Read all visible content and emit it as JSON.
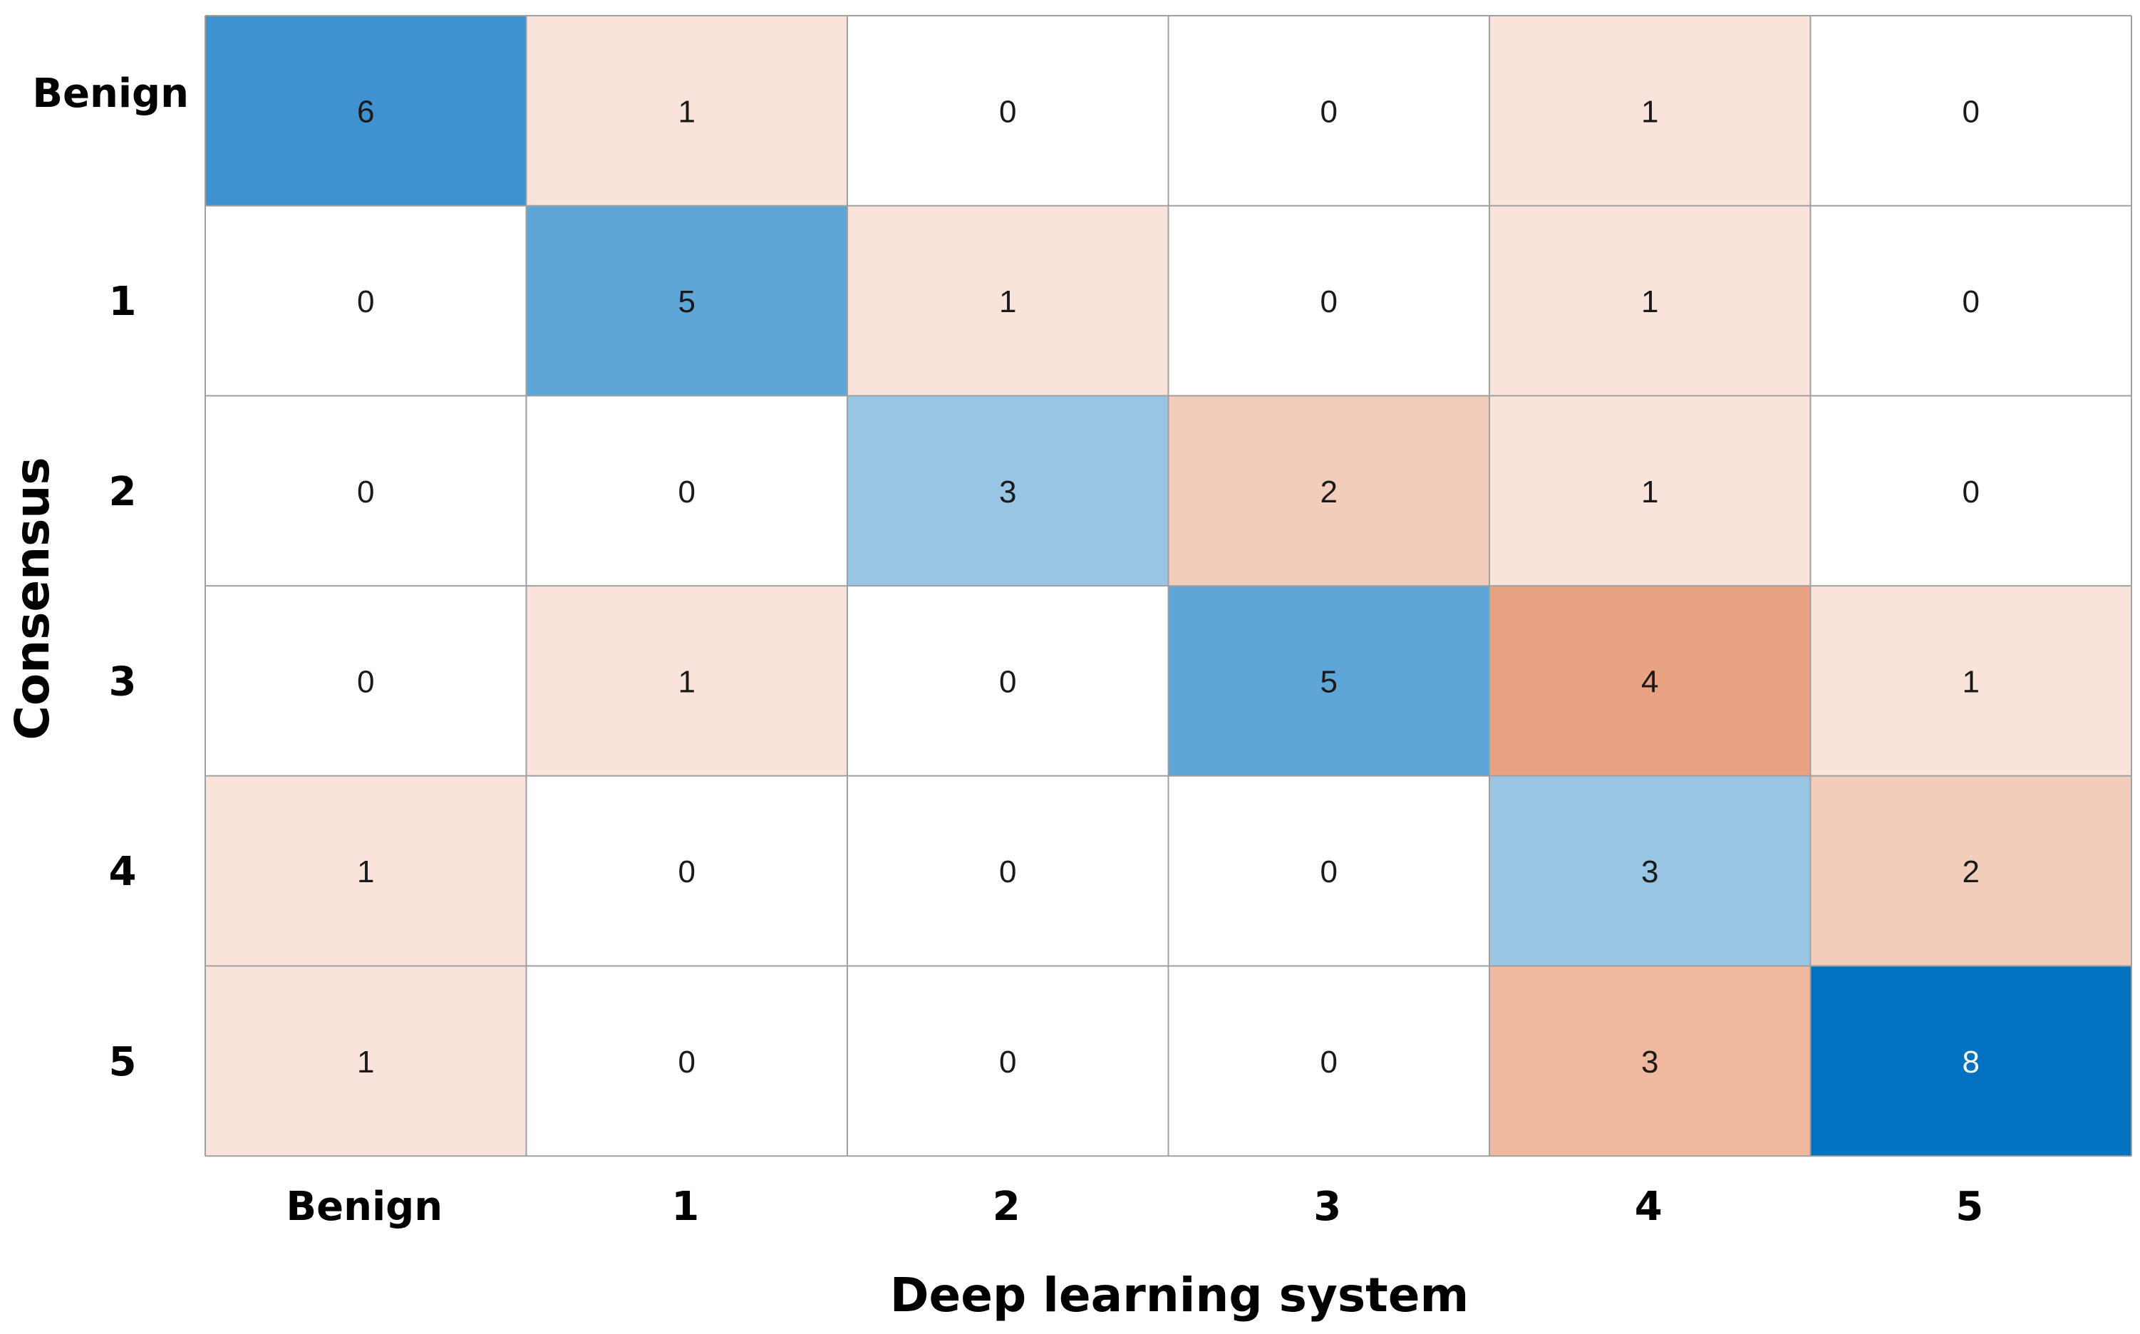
{
  "chart_data": {
    "type": "heatmap",
    "title": "",
    "xlabel": "Deep learning system",
    "ylabel": "Consensus",
    "x_categories": [
      "Benign",
      "1",
      "2",
      "3",
      "4",
      "5"
    ],
    "y_categories": [
      "Benign",
      "1",
      "2",
      "3",
      "4",
      "5"
    ],
    "values": [
      [
        6,
        1,
        0,
        0,
        1,
        0
      ],
      [
        0,
        5,
        1,
        0,
        1,
        0
      ],
      [
        0,
        0,
        3,
        2,
        1,
        0
      ],
      [
        0,
        1,
        0,
        5,
        4,
        1
      ],
      [
        1,
        0,
        0,
        0,
        3,
        2
      ],
      [
        1,
        0,
        0,
        0,
        3,
        8
      ]
    ],
    "colors": {
      "diagonal": {
        "3": "#99c5e4",
        "5": "#5fa6d8",
        "6": "#3d92cf",
        "8": "#0271c0"
      },
      "off_diagonal": {
        "0": "#ffffff",
        "1": "#f9e3da",
        "2": "#f3cdbb",
        "3": "#f0b99f",
        "4": "#e9a282"
      },
      "grid": "#a0a0a0",
      "text_dark": "#1a1a1a",
      "text_light": "#ffffff"
    }
  }
}
